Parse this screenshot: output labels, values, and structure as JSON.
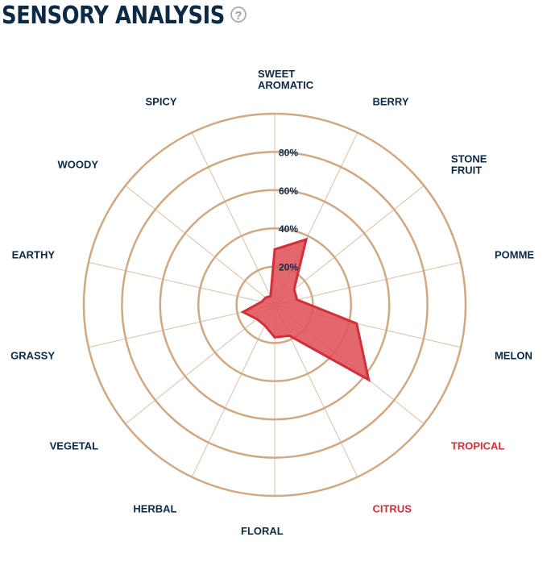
{
  "header": {
    "title": "SENSORY ANALYSIS",
    "help_icon": "?"
  },
  "colors": {
    "ring": "#cfa983",
    "spoke": "#dbc0a3",
    "fill": "#e0525a",
    "stroke": "#d32f3a",
    "text": "#0d2a45",
    "highlight": "#d32f3a"
  },
  "chart_data": {
    "type": "radar",
    "title": "",
    "axes": [
      "SWEET AROMATIC",
      "BERRY",
      "STONE FRUIT",
      "POMME",
      "MELON",
      "TROPICAL",
      "CITRUS",
      "FLORAL",
      "HERBAL",
      "VEGETAL",
      "GRASSY",
      "EARTHY",
      "WOODY",
      "SPICY"
    ],
    "axis_label_lines": [
      [
        "SWEET",
        "AROMATIC"
      ],
      [
        "BERRY"
      ],
      [
        "STONE",
        "FRUIT"
      ],
      [
        "POMME"
      ],
      [
        "MELON"
      ],
      [
        "TROPICAL"
      ],
      [
        "CITRUS"
      ],
      [
        "FLORAL"
      ],
      [
        "HERBAL"
      ],
      [
        "VEGETAL"
      ],
      [
        "GRASSY"
      ],
      [
        "EARTHY"
      ],
      [
        "WOODY"
      ],
      [
        "SPICY"
      ]
    ],
    "highlighted_axes": [
      "TROPICAL",
      "CITRUS"
    ],
    "values": [
      29,
      38,
      13,
      12,
      44,
      63,
      18,
      17,
      12,
      12,
      17,
      7,
      6,
      5
    ],
    "r_ticks": [
      20,
      40,
      60,
      80
    ],
    "r_tick_labels": [
      "20%",
      "40%",
      "60%",
      "80%"
    ],
    "r_max": 100,
    "grid": true
  }
}
